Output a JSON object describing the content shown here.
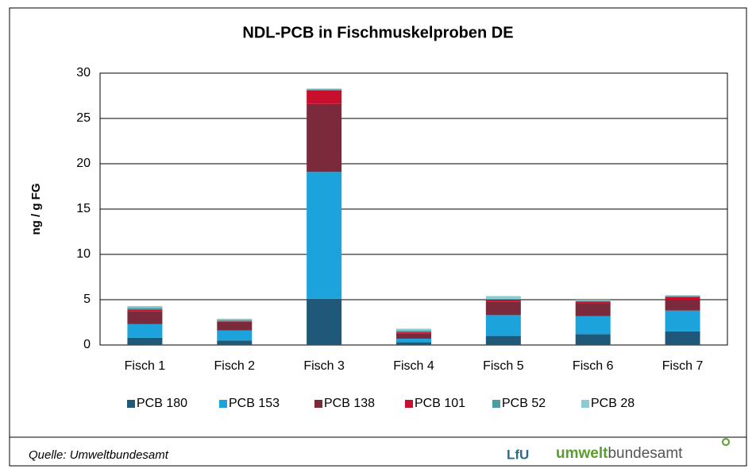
{
  "chart_data": {
    "type": "bar",
    "stacked": true,
    "title": "NDL-PCB in Fischmuskelproben DE",
    "y_label": "ng / g FG",
    "categories": [
      "Fisch 1",
      "Fisch 2",
      "Fisch 3",
      "Fisch 4",
      "Fisch 5",
      "Fisch 6",
      "Fisch 7"
    ],
    "series": [
      {
        "name": "PCB 180",
        "color": "#1f5878",
        "values": [
          0.8,
          0.5,
          5.1,
          0.3,
          1.0,
          1.2,
          1.5
        ]
      },
      {
        "name": "PCB 153",
        "color": "#1ca3dc",
        "values": [
          1.5,
          1.1,
          14.0,
          0.4,
          2.3,
          2.0,
          2.3
        ]
      },
      {
        "name": "PCB 138",
        "color": "#7a2a3a",
        "values": [
          1.4,
          0.9,
          7.5,
          0.6,
          1.5,
          1.4,
          1.2
        ]
      },
      {
        "name": "PCB 101",
        "color": "#c8102e",
        "values": [
          0.2,
          0.1,
          1.5,
          0.1,
          0.2,
          0.2,
          0.3
        ]
      },
      {
        "name": "PCB 52",
        "color": "#4a9e9f",
        "values": [
          0.2,
          0.15,
          0.1,
          0.2,
          0.1,
          0.1,
          0.1
        ]
      },
      {
        "name": "PCB 28",
        "color": "#8ccad2",
        "values": [
          0.2,
          0.15,
          0.1,
          0.2,
          0.3,
          0.1,
          0.1
        ]
      }
    ],
    "ylim": [
      0,
      30
    ],
    "yticks": [
      0,
      5,
      10,
      15,
      20,
      25,
      30
    ],
    "grid": true,
    "legend": "bottom"
  },
  "footer": {
    "source": "Quelle: Umweltbundesamt",
    "logo_lfu": "LfU",
    "logo_uba_bold": "umwelt",
    "logo_uba_light": "bundesamt"
  }
}
